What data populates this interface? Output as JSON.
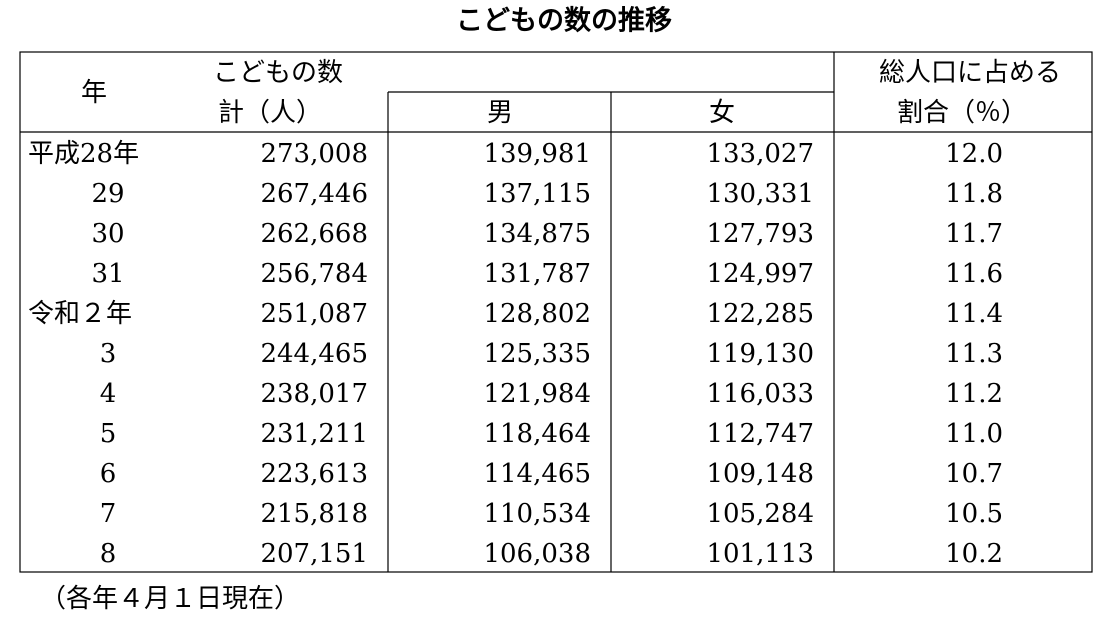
{
  "title": "こどもの数の推移",
  "table": {
    "header": {
      "year": "年",
      "count": "こどもの数",
      "total": "計（人）",
      "male": "男",
      "female": "女",
      "ratio": [
        "総人口に占める",
        "割合（％）"
      ]
    },
    "rows": [
      [
        "平成28年",
        "273,008",
        "139,981",
        "133,027",
        "12.0"
      ],
      [
        "29",
        "267,446",
        "137,115",
        "130,331",
        "11.8"
      ],
      [
        "30",
        "262,668",
        "134,875",
        "127,793",
        "11.7"
      ],
      [
        "31",
        "256,784",
        "131,787",
        "124,997",
        "11.6"
      ],
      [
        "令和２年",
        "251,087",
        "128,802",
        "122,285",
        "11.4"
      ],
      [
        "3",
        "244,465",
        "125,335",
        "119,130",
        "11.3"
      ],
      [
        "4",
        "238,017",
        "121,984",
        "116,033",
        "11.2"
      ],
      [
        "5",
        "231,211",
        "118,464",
        "112,747",
        "11.0"
      ],
      [
        "6",
        "223,613",
        "114,465",
        "109,148",
        "10.7"
      ],
      [
        "7",
        "215,818",
        "110,534",
        "105,284",
        "10.5"
      ],
      [
        "8",
        "207,151",
        "106,038",
        "101,113",
        "10.2"
      ]
    ]
  },
  "note": "（各年４月１日現在）"
}
